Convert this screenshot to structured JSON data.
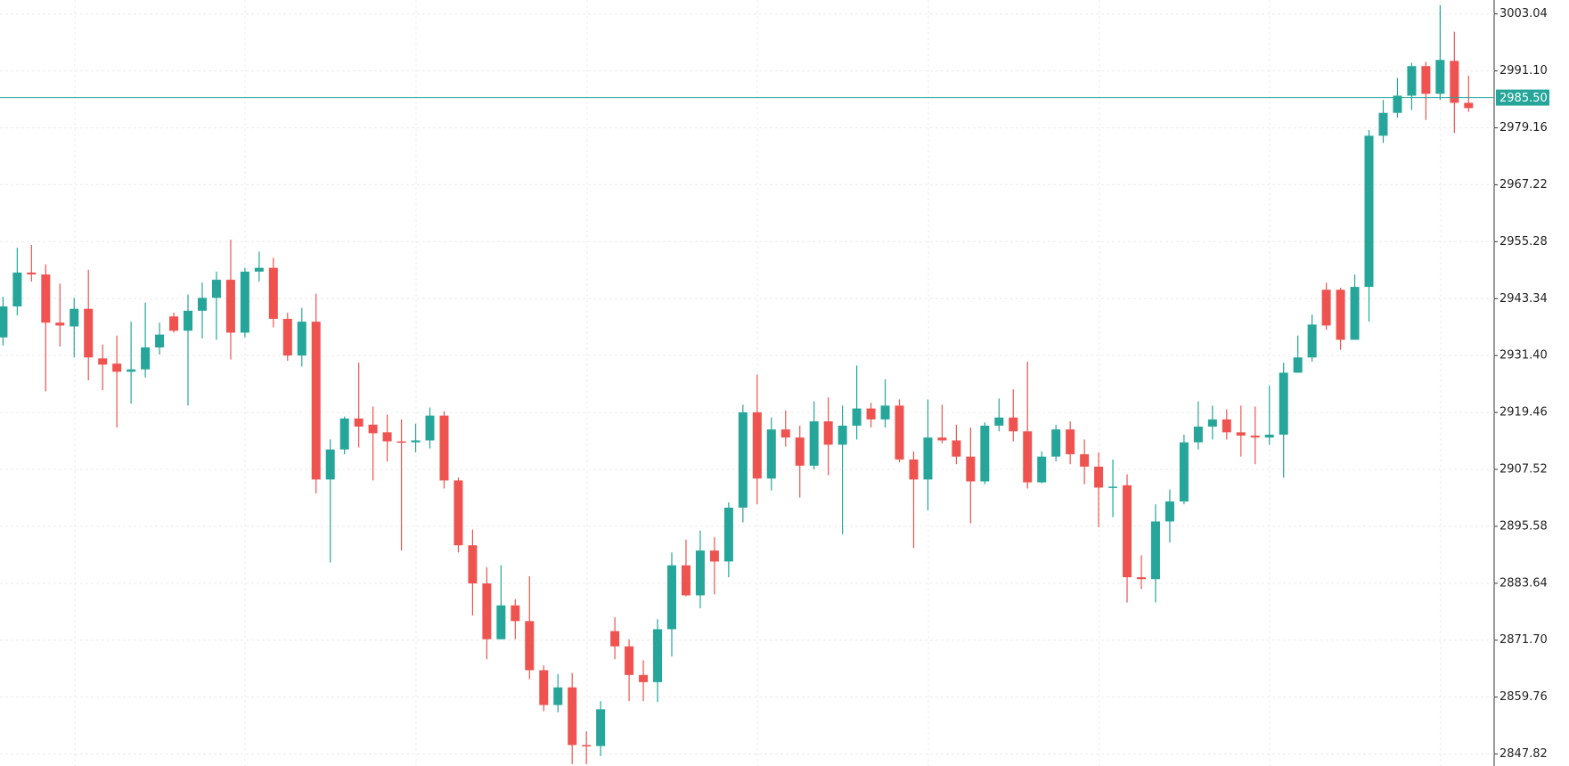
{
  "chart_data": {
    "type": "candlestick",
    "up_color": "#26a69a",
    "down_color": "#ef5350",
    "open": [
      2935.2,
      2941.7,
      2948.8,
      2948.4,
      2938.3,
      2937.5,
      2941.2,
      2930.8,
      2929.7,
      2928.0,
      2928.5,
      2933.1,
      2939.6,
      2936.6,
      2940.8,
      2943.5,
      2947.3,
      2936.2,
      2949.0,
      2949.8,
      2939.1,
      2931.4,
      2938.5,
      2905.4,
      2911.7,
      2918.2,
      2916.9,
      2915.3,
      2913.4,
      2913.2,
      2913.6,
      2918.8,
      2905.2,
      2891.6,
      2883.6,
      2871.9,
      2879.0,
      2875.7,
      2865.4,
      2858.1,
      2861.8,
      2849.7,
      2849.5,
      2873.6,
      2870.4,
      2864.4,
      2862.9,
      2874.0,
      2887.4,
      2881.1,
      2890.5,
      2888.2,
      2899.5,
      2919.5,
      2905.6,
      2915.9,
      2914.2,
      2908.3,
      2917.6,
      2912.7,
      2916.7,
      2920.3,
      2918.0,
      2920.9,
      2909.6,
      2905.4,
      2914.2,
      2913.6,
      2910.2,
      2905.0,
      2916.7,
      2918.4,
      2915.5,
      2904.8,
      2910.2,
      2915.9,
      2910.7,
      2908.1,
      2903.7,
      2904.2,
      2884.9,
      2884.5,
      2896.6,
      2900.8,
      2913.2,
      2916.5,
      2918.0,
      2915.3,
      2914.6,
      2914.2,
      2914.8,
      2927.8,
      2931.0,
      2945.2,
      2945.2,
      2934.7,
      2945.8,
      2977.5,
      2982.3,
      2985.9,
      2992.1,
      2986.3,
      2993.2,
      2984.4
    ],
    "high": [
      2943.7,
      2954.0,
      2954.6,
      2950.5,
      2946.5,
      2943.5,
      2949.4,
      2933.7,
      2935.6,
      2938.5,
      2942.5,
      2938.3,
      2940.4,
      2944.2,
      2946.7,
      2949.0,
      2955.7,
      2949.8,
      2953.2,
      2951.9,
      2940.4,
      2941.4,
      2944.4,
      2913.8,
      2918.6,
      2929.9,
      2920.7,
      2919.0,
      2918.0,
      2917.1,
      2920.5,
      2919.7,
      2905.8,
      2894.9,
      2887.0,
      2887.4,
      2880.3,
      2885.1,
      2866.4,
      2864.6,
      2864.8,
      2852.6,
      2858.9,
      2876.5,
      2871.9,
      2867.5,
      2876.1,
      2890.1,
      2892.8,
      2894.7,
      2893.3,
      2900.6,
      2921.1,
      2927.4,
      2918.4,
      2919.9,
      2916.7,
      2921.8,
      2922.6,
      2920.9,
      2929.3,
      2921.5,
      2926.4,
      2922.2,
      2911.3,
      2922.2,
      2921.1,
      2916.9,
      2916.3,
      2917.4,
      2922.4,
      2924.3,
      2930.1,
      2911.3,
      2916.9,
      2917.6,
      2913.8,
      2911.1,
      2909.6,
      2906.5,
      2889.5,
      2900.2,
      2903.3,
      2914.8,
      2921.8,
      2920.9,
      2920.1,
      2920.9,
      2920.7,
      2925.1,
      2929.9,
      2935.6,
      2940.0,
      2946.7,
      2945.6,
      2948.4,
      2978.7,
      2985.0,
      2989.6,
      2992.8,
      2993.0,
      3004.9,
      2999.3,
      2990.1
    ],
    "low": [
      2933.5,
      2939.8,
      2946.9,
      2923.9,
      2933.3,
      2931.0,
      2926.2,
      2924.1,
      2916.3,
      2921.3,
      2926.8,
      2931.6,
      2936.2,
      2920.9,
      2935.0,
      2934.7,
      2930.6,
      2935.2,
      2946.9,
      2937.3,
      2930.3,
      2929.1,
      2902.5,
      2888.0,
      2910.7,
      2912.1,
      2905.2,
      2909.2,
      2890.5,
      2911.1,
      2911.9,
      2903.5,
      2890.1,
      2876.9,
      2867.7,
      2871.9,
      2871.9,
      2863.5,
      2856.8,
      2856.6,
      2845.7,
      2845.7,
      2847.4,
      2867.7,
      2858.9,
      2858.9,
      2858.7,
      2868.3,
      2880.9,
      2878.4,
      2881.3,
      2884.9,
      2896.4,
      2900.2,
      2903.1,
      2912.3,
      2901.6,
      2907.5,
      2906.3,
      2893.9,
      2913.8,
      2916.3,
      2916.3,
      2909.0,
      2891.0,
      2898.9,
      2913.0,
      2908.6,
      2896.2,
      2904.4,
      2915.5,
      2913.4,
      2903.5,
      2904.6,
      2909.2,
      2908.6,
      2904.4,
      2895.4,
      2897.5,
      2879.6,
      2882.4,
      2879.6,
      2892.2,
      2900.2,
      2911.7,
      2913.8,
      2913.8,
      2910.2,
      2908.6,
      2912.7,
      2905.8,
      2927.8,
      2930.1,
      2936.8,
      2932.6,
      2934.7,
      2938.5,
      2976.0,
      2981.3,
      2982.9,
      2980.8,
      2985.0,
      2978.1,
      2982.5
    ],
    "close": [
      2941.7,
      2948.8,
      2948.4,
      2938.3,
      2937.7,
      2941.2,
      2931.0,
      2929.5,
      2928.0,
      2928.5,
      2933.1,
      2935.8,
      2936.6,
      2940.8,
      2943.5,
      2947.3,
      2936.2,
      2949.0,
      2949.8,
      2939.1,
      2931.4,
      2938.5,
      2905.4,
      2911.7,
      2918.2,
      2916.5,
      2915.1,
      2913.4,
      2913.2,
      2913.6,
      2918.8,
      2905.2,
      2891.6,
      2883.6,
      2871.9,
      2879.0,
      2875.7,
      2865.4,
      2858.1,
      2861.8,
      2849.7,
      2849.5,
      2857.2,
      2870.4,
      2864.4,
      2862.9,
      2874.0,
      2887.4,
      2881.1,
      2890.5,
      2888.2,
      2899.5,
      2919.5,
      2905.6,
      2915.9,
      2914.2,
      2908.3,
      2917.6,
      2912.7,
      2916.7,
      2920.3,
      2918.0,
      2920.9,
      2909.6,
      2905.4,
      2914.2,
      2913.6,
      2910.2,
      2905.0,
      2916.7,
      2918.4,
      2915.5,
      2904.8,
      2910.2,
      2915.9,
      2910.7,
      2908.1,
      2903.7,
      2903.9,
      2884.9,
      2884.5,
      2896.6,
      2900.8,
      2913.2,
      2916.5,
      2918.0,
      2915.3,
      2914.6,
      2914.2,
      2914.8,
      2927.8,
      2931.0,
      2937.9,
      2937.7,
      2934.7,
      2945.8,
      2977.5,
      2982.3,
      2985.9,
      2992.1,
      2986.3,
      2993.4,
      2984.4,
      2983.3
    ],
    "ylim": [
      2845.31,
      3005.97
    ],
    "yticks": [
      3003.04,
      {
        "value": 2991.1,
        "label": "2991.10"
      },
      2979.16,
      2967.22,
      2955.28,
      2943.34,
      {
        "value": 2931.4,
        "label": "2931.40"
      },
      2919.46,
      2907.52,
      2895.58,
      2883.64,
      {
        "value": 2871.7,
        "label": "2871.70"
      },
      2859.76,
      2847.82
    ],
    "grid": true,
    "price_line": {
      "value": 2985.5,
      "label": "2985.50",
      "color": "#26a69a"
    }
  }
}
